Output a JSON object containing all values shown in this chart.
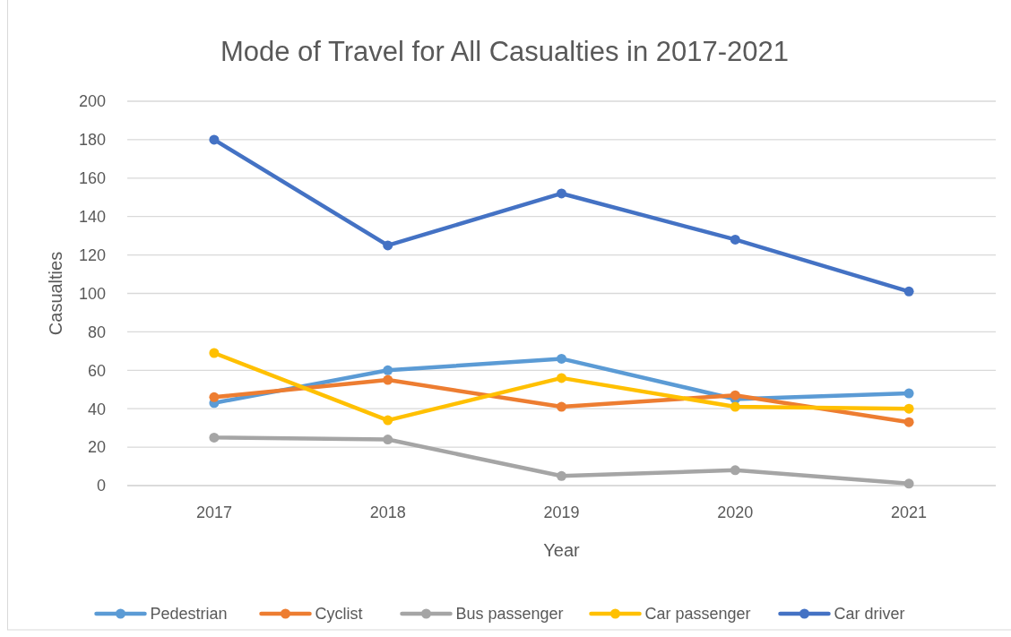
{
  "chart_data": {
    "type": "line",
    "title": "Mode of Travel for All Casualties in 2017-2021",
    "xlabel": "Year",
    "ylabel": "Casualties",
    "categories": [
      "2017",
      "2018",
      "2019",
      "2020",
      "2021"
    ],
    "ylim": [
      0,
      200
    ],
    "yticks": [
      0,
      20,
      40,
      60,
      80,
      100,
      120,
      140,
      160,
      180,
      200
    ],
    "grid": "y",
    "legend": "bottom",
    "marker": "circle",
    "series": [
      {
        "name": "Pedestrian",
        "color": "#5b9bd5",
        "values": [
          43,
          60,
          66,
          45,
          48
        ]
      },
      {
        "name": "Cyclist",
        "color": "#ed7d31",
        "values": [
          46,
          55,
          41,
          47,
          33
        ]
      },
      {
        "name": "Bus passenger",
        "color": "#a5a5a5",
        "values": [
          25,
          24,
          5,
          8,
          1
        ]
      },
      {
        "name": "Car passenger",
        "color": "#ffc000",
        "values": [
          69,
          34,
          56,
          41,
          40
        ]
      },
      {
        "name": "Car driver",
        "color": "#4472c4",
        "values": [
          180,
          125,
          152,
          128,
          101
        ]
      }
    ]
  }
}
